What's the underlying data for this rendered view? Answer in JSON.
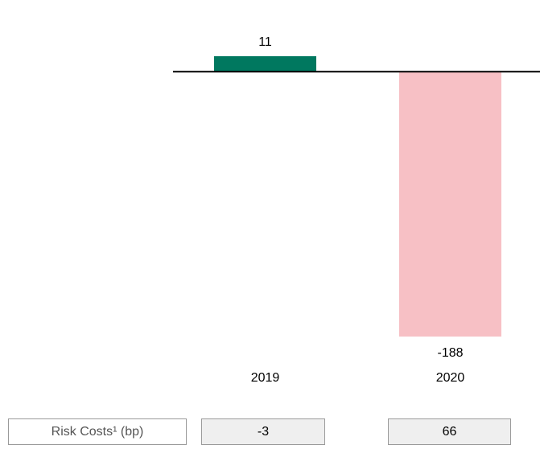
{
  "chart_data": {
    "type": "bar",
    "categories": [
      "2019",
      "2020"
    ],
    "values": [
      11,
      -188
    ],
    "colors": [
      "#00785f",
      "#f7c0c5"
    ],
    "ylim": [
      -188,
      11
    ]
  },
  "table": {
    "row_label": "Risk Costs¹ (bp)",
    "values": [
      -3,
      66
    ]
  }
}
